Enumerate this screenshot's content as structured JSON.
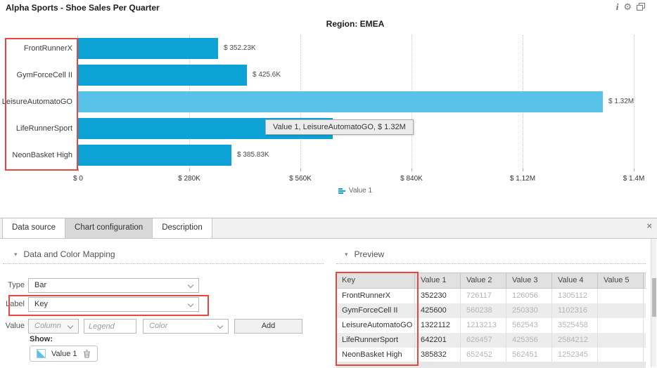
{
  "ui": {
    "icons": {
      "info": "i",
      "gear": "⚙",
      "collapse": "▾",
      "close": "×"
    }
  },
  "chart": {
    "title": "Alpha Sports - Shoe Sales Per Quarter",
    "subtitle": "Region: EMEA",
    "tooltip": "Value 1, LeisureAutomatoGO, $ 1.32M",
    "legend": {
      "label": "Value 1"
    },
    "colors": {
      "bar": "#0da2d6",
      "bar_highlight": "#58c2e8",
      "annotation": "#e8463f"
    },
    "annotations": [
      "category-axis-labels",
      "label-mapping-row",
      "preview-key-column"
    ]
  },
  "chart_data": {
    "type": "bar",
    "orientation": "horizontal",
    "title": "Alpha Sports - Shoe Sales Per Quarter",
    "subtitle": "Region: EMEA",
    "series_name": "Value 1",
    "categories": [
      "FrontRunnerX",
      "GymForceCell II",
      "LeisureAutomatoGO",
      "LifeRunnerSport",
      "NeonBasket High"
    ],
    "values": [
      352230,
      425600,
      1322112,
      642201,
      385832
    ],
    "value_labels": [
      "$ 352.23K",
      "$ 425.6K",
      "$ 1.32M",
      "",
      "$ 385.83K"
    ],
    "highlighted_index": 2,
    "x_ticks": [
      "$ 0",
      "$ 280K",
      "$ 560K",
      "$ 840K",
      "$ 1.12M",
      "$ 1.4M"
    ],
    "xlim": [
      0,
      1400000
    ],
    "grid": "vertical-dotted",
    "legend_position": "bottom"
  },
  "panel": {
    "tabs": [
      {
        "label": "Data source",
        "selected": false
      },
      {
        "label": "Chart configuration",
        "selected": true
      },
      {
        "label": "Description",
        "selected": false
      }
    ],
    "mapping": {
      "section_title": "Data and Color Mapping",
      "type": {
        "label": "Type",
        "value": "Bar"
      },
      "label": {
        "label": "Label",
        "value": "Key"
      },
      "value": {
        "label": "Value",
        "column_placeholder": "Column",
        "legend_placeholder": "Legend",
        "color_placeholder": "Color",
        "add_button": "Add"
      },
      "show_label": "Show:",
      "show_chip": {
        "label": "Value 1"
      }
    },
    "preview": {
      "section_title": "Preview",
      "columns": [
        "Key",
        "Value 1",
        "Value 2",
        "Value 3",
        "Value 4",
        "Value 5"
      ],
      "rows": [
        {
          "key": "FrontRunnerX",
          "values": [
            "352230",
            "726117",
            "126056",
            "1305112",
            ""
          ]
        },
        {
          "key": "GymForceCell II",
          "values": [
            "425600",
            "560238",
            "250330",
            "1102316",
            ""
          ]
        },
        {
          "key": "LeisureAutomatoGO",
          "values": [
            "1322112",
            "1213213",
            "562543",
            "3525458",
            ""
          ]
        },
        {
          "key": "LifeRunnerSport",
          "values": [
            "642201",
            "626457",
            "425356",
            "2584212",
            ""
          ]
        },
        {
          "key": "NeonBasket High",
          "values": [
            "385832",
            "652452",
            "562451",
            "1252345",
            ""
          ]
        }
      ]
    }
  }
}
